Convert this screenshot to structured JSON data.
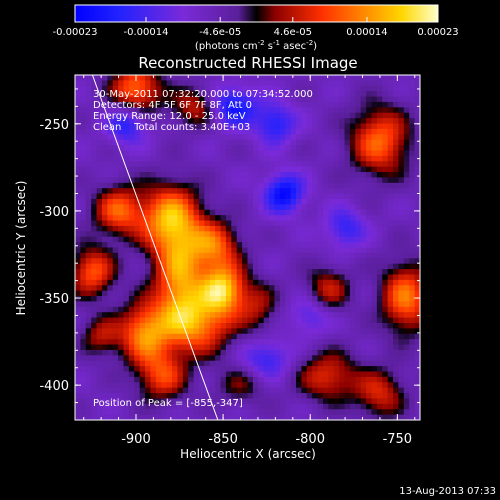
{
  "chart_data": {
    "type": "heatmap",
    "title": "Reconstructed RHESSI Image",
    "xlabel": "Heliocentric X (arcsec)",
    "ylabel": "Heliocentric Y (arcsec)",
    "xlim": [
      -935,
      -737
    ],
    "ylim": [
      -420,
      -222
    ],
    "xticks": [
      -900,
      -850,
      -800,
      -750
    ],
    "xtick_labels": [
      "-900",
      "-850",
      "-800",
      "-750"
    ],
    "yticks": [
      -400,
      -350,
      -300,
      -250
    ],
    "ytick_labels": [
      "-400",
      "-350",
      "-300",
      "-250"
    ],
    "colorbar": {
      "min": -0.00023,
      "max": 0.00023,
      "ticks": [
        -0.00023,
        -0.00014,
        -4.6e-05,
        4.6e-05,
        0.00014,
        0.00023
      ],
      "tick_labels": [
        "-0.00023",
        "-0.00014",
        "-4.6e-05",
        "4.6e-05",
        "0.00014",
        "0.00023"
      ],
      "unit_prefix": "(photons cm",
      "unit_exp1": "-2",
      "unit_mid": " s",
      "unit_exp2": "-1",
      "unit_mid2": " asec",
      "unit_exp3": "-2",
      "unit_suffix": ")"
    },
    "annotations": [
      "30-May-2011 07:32:20.000 to 07:34:52.000",
      "Detectors: 4F 5F 6F 7F 8F, Att 0",
      "Energy Range: 12.0 - 25.0 keV",
      "Clean    Total counts: 3.40E+03"
    ],
    "peak_label": "Position of Peak = [-855,-347]",
    "limb_line": [
      [
        -925,
        -222
      ],
      [
        -853,
        -420
      ]
    ],
    "sources": [
      {
        "x": -880,
        "y": -305,
        "amp": 0.00022,
        "sx": 12,
        "sy": 14
      },
      {
        "x": -875,
        "y": -340,
        "amp": 0.00019,
        "sx": 10,
        "sy": 18
      },
      {
        "x": -850,
        "y": -345,
        "amp": 0.00023,
        "sx": 9,
        "sy": 10
      },
      {
        "x": -855,
        "y": -320,
        "amp": 0.00016,
        "sx": 10,
        "sy": 10
      },
      {
        "x": -865,
        "y": -365,
        "amp": 0.00018,
        "sx": 14,
        "sy": 12
      },
      {
        "x": -895,
        "y": -370,
        "amp": 0.00019,
        "sx": 10,
        "sy": 12
      },
      {
        "x": -885,
        "y": -395,
        "amp": 0.00014,
        "sx": 10,
        "sy": 10
      },
      {
        "x": -910,
        "y": -300,
        "amp": 0.00016,
        "sx": 10,
        "sy": 10
      },
      {
        "x": -925,
        "y": -335,
        "amp": 0.00016,
        "sx": 9,
        "sy": 10
      },
      {
        "x": -920,
        "y": -372,
        "amp": 0.0001,
        "sx": 8,
        "sy": 8
      },
      {
        "x": -900,
        "y": -230,
        "amp": 0.00018,
        "sx": 10,
        "sy": 10
      },
      {
        "x": -865,
        "y": -240,
        "amp": 0.00012,
        "sx": 10,
        "sy": 8
      },
      {
        "x": -830,
        "y": -355,
        "amp": 9e-05,
        "sx": 8,
        "sy": 10
      },
      {
        "x": -760,
        "y": -260,
        "amp": 0.00017,
        "sx": 12,
        "sy": 14
      },
      {
        "x": -745,
        "y": -350,
        "amp": 0.00018,
        "sx": 10,
        "sy": 14
      },
      {
        "x": -790,
        "y": -345,
        "amp": 0.00011,
        "sx": 9,
        "sy": 9
      },
      {
        "x": -790,
        "y": -395,
        "amp": 0.00013,
        "sx": 12,
        "sy": 10
      },
      {
        "x": -760,
        "y": -405,
        "amp": 0.00012,
        "sx": 10,
        "sy": 10
      },
      {
        "x": -840,
        "y": -400,
        "amp": 7e-05,
        "sx": 10,
        "sy": 8
      },
      {
        "x": -815,
        "y": -290,
        "amp": -0.00016,
        "sx": 8,
        "sy": 8
      },
      {
        "x": -845,
        "y": -240,
        "amp": -0.00015,
        "sx": 10,
        "sy": 8
      },
      {
        "x": -905,
        "y": -250,
        "amp": -0.00012,
        "sx": 8,
        "sy": 8
      },
      {
        "x": -820,
        "y": -250,
        "amp": -0.00012,
        "sx": 8,
        "sy": 8
      },
      {
        "x": -780,
        "y": -310,
        "amp": -0.0001,
        "sx": 8,
        "sy": 8
      },
      {
        "x": -825,
        "y": -385,
        "amp": -0.0001,
        "sx": 10,
        "sy": 8
      },
      {
        "x": -800,
        "y": -360,
        "amp": -8e-05,
        "sx": 8,
        "sy": 8
      }
    ],
    "background": -6e-05
  },
  "timestamp": "13-Aug-2013 07:33"
}
